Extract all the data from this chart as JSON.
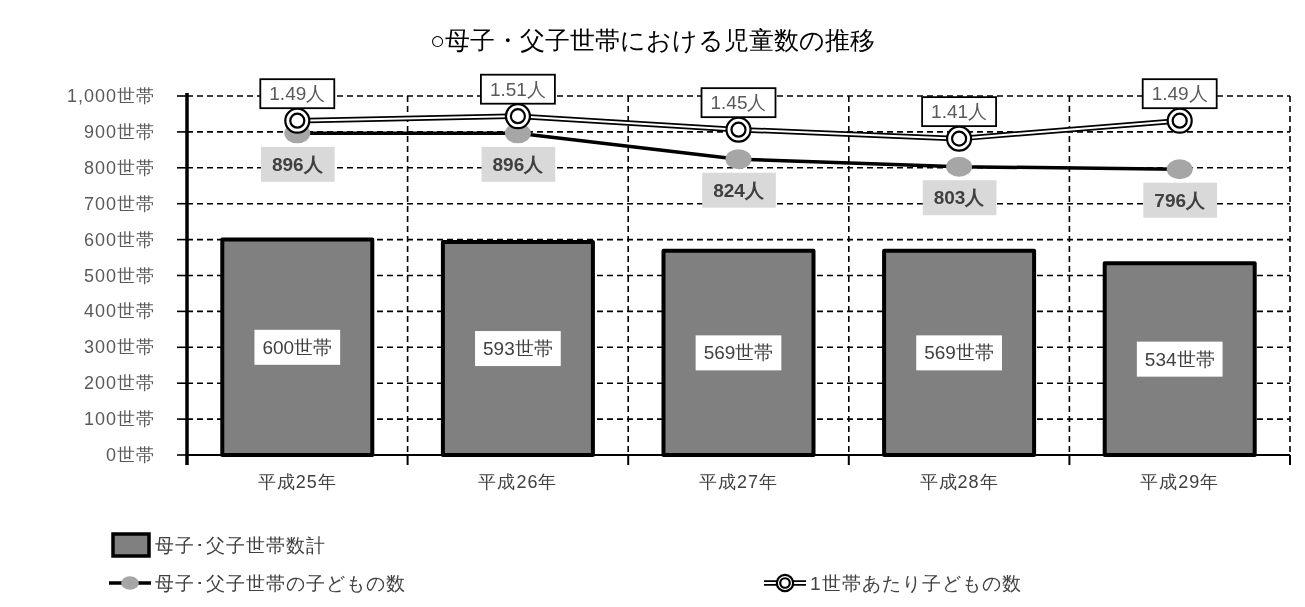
{
  "chart_data": {
    "type": "bar",
    "title": "○母子・父子世帯における児童数の推移",
    "categories": [
      "平成25年",
      "平成26年",
      "平成27年",
      "平成28年",
      "平成29年"
    ],
    "series": [
      {
        "name": "母子･父子世帯数計",
        "color": "#808080",
        "values": [
          600,
          593,
          569,
          569,
          534
        ],
        "value_labels": [
          "600世帯",
          "593世帯",
          "569世帯",
          "569世帯",
          "534世帯"
        ]
      },
      {
        "name": "母子･父子世帯の子どもの数",
        "type": "line",
        "color": "#000000",
        "values": [
          896,
          896,
          824,
          803,
          796
        ],
        "value_labels": [
          "896人",
          "896人",
          "824人",
          "803人",
          "796人"
        ]
      },
      {
        "name": "1世帯あたり子どもの数",
        "type": "line",
        "axis": "y2",
        "color": "#000000",
        "values": [
          1.49,
          1.51,
          1.45,
          1.41,
          1.49
        ],
        "value_labels": [
          "1.49人",
          "1.51人",
          "1.45人",
          "1.41人",
          "1.49人"
        ]
      }
    ],
    "ylim": [
      0,
      1000
    ],
    "yticks": [
      {
        "value": 0,
        "label": "0世帯"
      },
      {
        "value": 100,
        "label": "100世帯"
      },
      {
        "value": 200,
        "label": "200世帯"
      },
      {
        "value": 300,
        "label": "300世帯"
      },
      {
        "value": 400,
        "label": "400世帯"
      },
      {
        "value": 500,
        "label": "500世帯"
      },
      {
        "value": 600,
        "label": "600世帯"
      },
      {
        "value": 700,
        "label": "700世帯"
      },
      {
        "value": 800,
        "label": "800世帯"
      },
      {
        "value": 900,
        "label": "900世帯"
      },
      {
        "value": 1000,
        "label": "1,000世帯"
      }
    ],
    "y2lim": [
      0,
      1.6
    ],
    "grid": true,
    "legend": "bottom",
    "marker": "circle",
    "line_style": "solid"
  }
}
